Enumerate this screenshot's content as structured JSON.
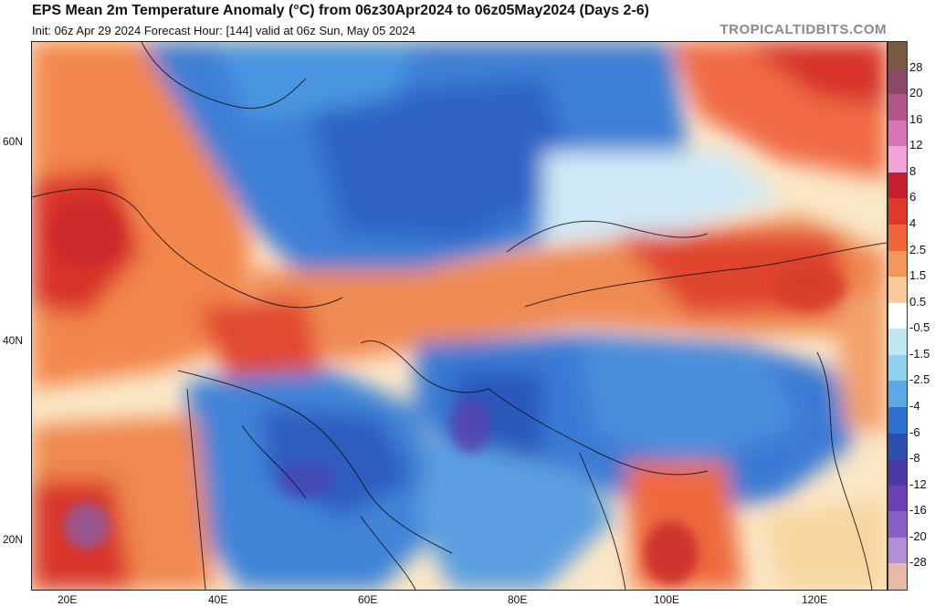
{
  "header": {
    "title": "EPS Mean 2m Temperature Anomaly (°C) from 06z30Apr2024 to 06z05May2024 (Days 2-6)",
    "subtitle": "Init: 06z Apr 29 2024   Forecast Hour: [144]   valid at 06z Sun, May 05 2024",
    "brand": "TROPICALTIDBITS.COM"
  },
  "axes": {
    "lat_labels": [
      "60N",
      "40N",
      "20N"
    ],
    "lon_labels": [
      "20E",
      "40E",
      "60E",
      "80E",
      "100E",
      "120E"
    ]
  },
  "colorbar": {
    "labels": [
      "28",
      "20",
      "16",
      "12",
      "8",
      "6",
      "4",
      "2.5",
      "1.5",
      "0.5",
      "-0.5",
      "-1.5",
      "-2.5",
      "-4",
      "-6",
      "-8",
      "-12",
      "-16",
      "-20",
      "-28"
    ],
    "colors": [
      "#7a5a44",
      "#8c4a6a",
      "#b25488",
      "#d873b6",
      "#f2a3d8",
      "#c41f2a",
      "#e0382b",
      "#f0663a",
      "#f6975a",
      "#fbc99a",
      "#ffffff",
      "#bfe8f2",
      "#8fd1ef",
      "#5aa9e6",
      "#2f6fd1",
      "#2b4fb0",
      "#4a3aa8",
      "#6b3fb8",
      "#8a5fc8",
      "#b08fd8",
      "#e8b9a8"
    ]
  }
}
